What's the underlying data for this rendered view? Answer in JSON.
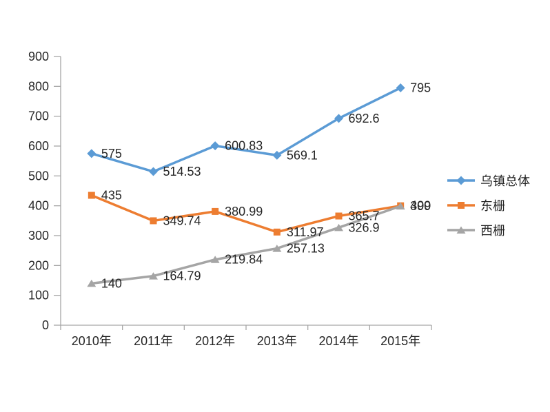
{
  "chart_data": {
    "type": "line",
    "title": "",
    "xlabel": "",
    "ylabel": "",
    "categories": [
      "2010年",
      "2011年",
      "2012年",
      "2013年",
      "2014年",
      "2015年"
    ],
    "series": [
      {
        "name": "乌镇总体",
        "color": "#5B9BD5",
        "marker": "diamond",
        "values": [
          575,
          514.53,
          600.83,
          569.1,
          692.6,
          795
        ],
        "labels": [
          "575",
          "514.53",
          "600.83",
          "569.1",
          "692.6",
          "795"
        ]
      },
      {
        "name": "东栅",
        "color": "#ED7D31",
        "marker": "square",
        "values": [
          435,
          349.74,
          380.99,
          311.97,
          365.7,
          400
        ],
        "labels": [
          "435",
          "349.74",
          "380.99",
          "311.97",
          "365.7",
          "400"
        ]
      },
      {
        "name": "西栅",
        "color": "#A5A5A5",
        "marker": "triangle",
        "values": [
          140,
          164.79,
          219.84,
          257.13,
          326.9,
          399
        ],
        "labels": [
          "140",
          "164.79",
          "219.84",
          "257.13",
          "326.9",
          "399"
        ]
      }
    ],
    "ylim": [
      0,
      900
    ],
    "ytick_step": 100,
    "yticks": [
      "0",
      "100",
      "200",
      "300",
      "400",
      "500",
      "600",
      "700",
      "800",
      "900"
    ],
    "grid": false,
    "legend_position": "right",
    "axis_color": "#A6A6A6",
    "text_color": "#262626",
    "background_color": "#FFFFFF"
  }
}
